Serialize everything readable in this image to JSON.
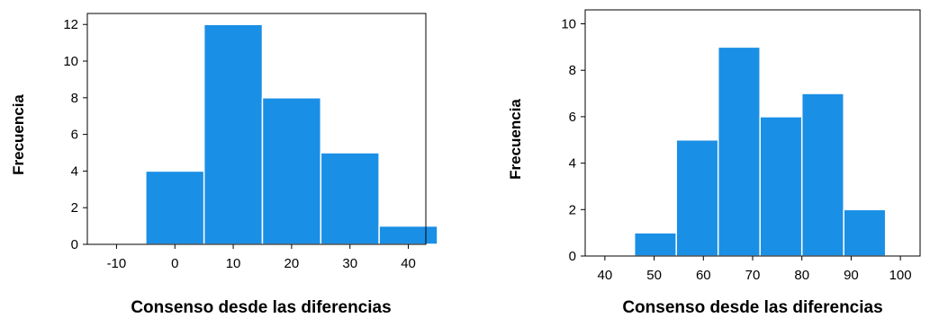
{
  "chart_data": [
    {
      "type": "histogram",
      "xlabel": "Consenso desde las diferencias",
      "ylabel": "Frecuencia",
      "xlim": [
        -15,
        43
      ],
      "ylim": [
        0,
        12.6
      ],
      "xticks": [
        -10,
        0,
        10,
        20,
        30,
        40
      ],
      "yticks": [
        0,
        2,
        4,
        6,
        8,
        10,
        12
      ],
      "bins": [
        {
          "start": -5,
          "end": 5,
          "count": 4
        },
        {
          "start": 5,
          "end": 15,
          "count": 12
        },
        {
          "start": 15,
          "end": 25,
          "count": 8
        },
        {
          "start": 25,
          "end": 35,
          "count": 5
        },
        {
          "start": 35,
          "end": 45,
          "count": 1
        }
      ],
      "bar_color": "#1a8fe6",
      "grid": false
    },
    {
      "type": "histogram",
      "xlabel": "Consenso desde las diferencias",
      "ylabel": "Frecuencia",
      "xlim": [
        36,
        104
      ],
      "ylim": [
        0,
        10.6
      ],
      "xticks": [
        40,
        50,
        60,
        70,
        80,
        90,
        100
      ],
      "yticks": [
        0,
        2,
        4,
        6,
        8,
        10
      ],
      "bins": [
        {
          "start": 46,
          "end": 54.5,
          "count": 1
        },
        {
          "start": 54.5,
          "end": 63,
          "count": 5
        },
        {
          "start": 63,
          "end": 71.5,
          "count": 9
        },
        {
          "start": 71.5,
          "end": 80,
          "count": 6
        },
        {
          "start": 80,
          "end": 88.5,
          "count": 7
        },
        {
          "start": 88.5,
          "end": 97,
          "count": 2
        }
      ],
      "bar_color": "#1a8fe6",
      "grid": false
    }
  ]
}
